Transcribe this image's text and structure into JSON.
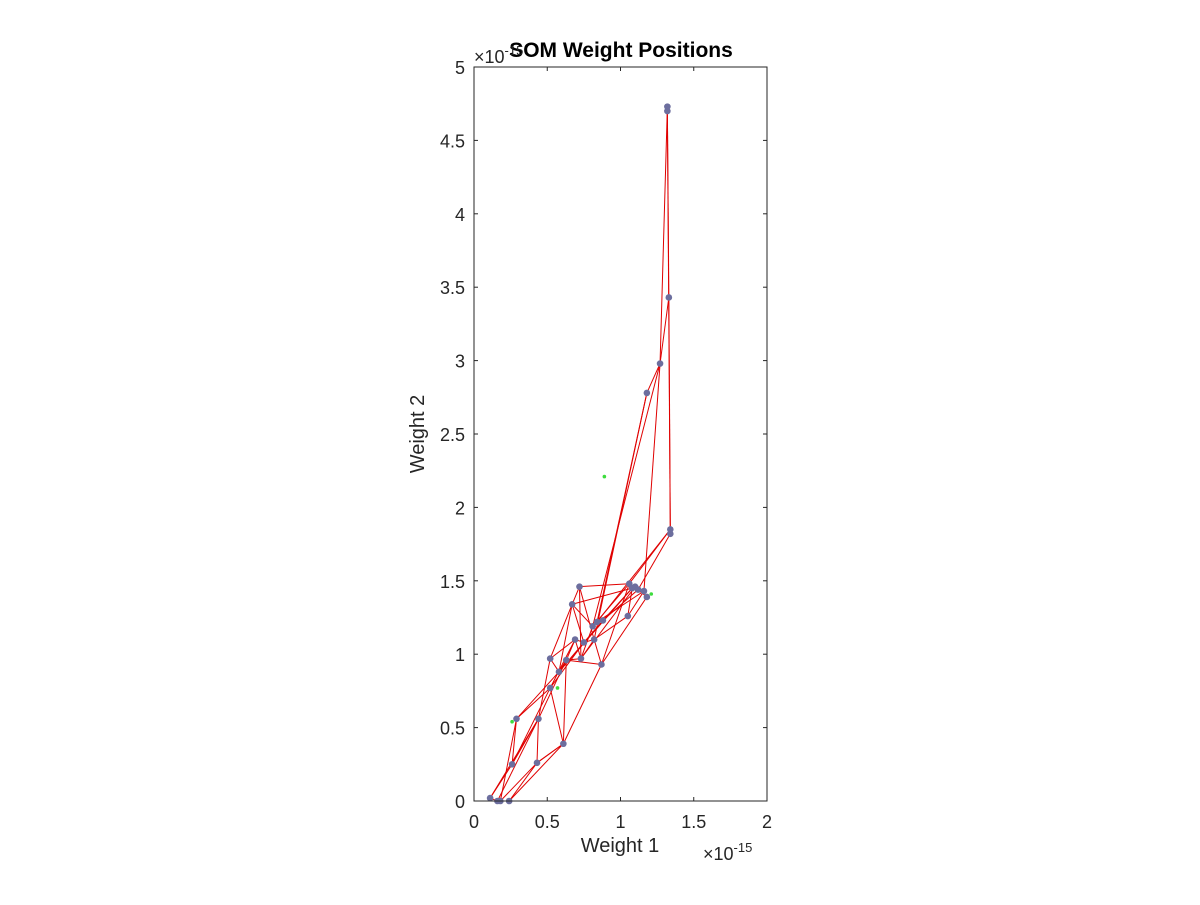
{
  "chart_data": {
    "type": "scatter",
    "title": "SOM Weight Positions",
    "xlabel": "Weight 1",
    "ylabel": "Weight 2",
    "x_exponent_label": "×10",
    "x_exponent": "-15",
    "y_exponent_label": "×10",
    "y_exponent": "-15",
    "xlim": [
      0,
      2
    ],
    "ylim": [
      0,
      5
    ],
    "xticks": [
      "0",
      "0.5",
      "1",
      "1.5",
      "2"
    ],
    "xtick_values": [
      0,
      0.5,
      1,
      1.5,
      2
    ],
    "yticks": [
      "0",
      "0.5",
      "1",
      "1.5",
      "2",
      "2.5",
      "3",
      "3.5",
      "4",
      "4.5",
      "5"
    ],
    "ytick_values": [
      0,
      0.5,
      1,
      1.5,
      2,
      2.5,
      3,
      3.5,
      4,
      4.5,
      5
    ],
    "grid": false,
    "colors": {
      "neurons": "#6c6e9e",
      "links": "#e00000",
      "inputs": "#3ddc3d",
      "axes": "#262626"
    },
    "series": [
      {
        "role": "input-data",
        "points": [
          [
            0.26,
            0.54
          ],
          [
            0.89,
            2.21
          ],
          [
            1.21,
            1.41
          ],
          [
            0.57,
            0.77
          ]
        ]
      },
      {
        "role": "neuron-weights",
        "points": [
          [
            0.11,
            0.02
          ],
          [
            0.16,
            0.0
          ],
          [
            0.18,
            0.0
          ],
          [
            0.24,
            0.0
          ],
          [
            0.26,
            0.25
          ],
          [
            0.29,
            0.56
          ],
          [
            0.43,
            0.26
          ],
          [
            0.44,
            0.56
          ],
          [
            0.52,
            0.77
          ],
          [
            0.52,
            0.97
          ],
          [
            0.58,
            0.88
          ],
          [
            0.61,
            0.39
          ],
          [
            0.63,
            0.96
          ],
          [
            0.67,
            1.34
          ],
          [
            0.69,
            1.1
          ],
          [
            0.72,
            1.46
          ],
          [
            0.73,
            0.97
          ],
          [
            0.75,
            1.08
          ],
          [
            0.81,
            1.19
          ],
          [
            0.82,
            1.1
          ],
          [
            0.84,
            1.22
          ],
          [
            0.87,
            0.93
          ],
          [
            0.88,
            1.23
          ],
          [
            1.05,
            1.26
          ],
          [
            1.06,
            1.48
          ],
          [
            1.1,
            1.46
          ],
          [
            1.12,
            1.44
          ],
          [
            1.16,
            1.43
          ],
          [
            1.18,
            1.39
          ],
          [
            1.18,
            2.78
          ],
          [
            1.27,
            2.98
          ],
          [
            1.32,
            4.7
          ],
          [
            1.32,
            4.73
          ],
          [
            1.33,
            3.43
          ],
          [
            1.34,
            1.82
          ],
          [
            1.34,
            1.85
          ],
          [
            1.08,
            1.45
          ]
        ]
      }
    ],
    "links": [
      [
        0,
        1
      ],
      [
        1,
        2
      ],
      [
        2,
        3
      ],
      [
        0,
        4
      ],
      [
        4,
        5
      ],
      [
        5,
        8
      ],
      [
        8,
        11
      ],
      [
        11,
        6
      ],
      [
        6,
        7
      ],
      [
        7,
        9
      ],
      [
        9,
        10
      ],
      [
        10,
        12
      ],
      [
        12,
        14
      ],
      [
        14,
        17
      ],
      [
        17,
        19
      ],
      [
        19,
        21
      ],
      [
        21,
        24
      ],
      [
        24,
        26
      ],
      [
        26,
        28
      ],
      [
        28,
        25
      ],
      [
        25,
        27
      ],
      [
        27,
        23
      ],
      [
        23,
        36
      ],
      [
        36,
        22
      ],
      [
        22,
        20
      ],
      [
        20,
        18
      ],
      [
        18,
        16
      ],
      [
        16,
        15
      ],
      [
        15,
        13
      ],
      [
        13,
        9
      ],
      [
        0,
        7
      ],
      [
        6,
        11
      ],
      [
        11,
        12
      ],
      [
        12,
        21
      ],
      [
        21,
        28
      ],
      [
        4,
        8
      ],
      [
        8,
        14
      ],
      [
        14,
        16
      ],
      [
        16,
        19
      ],
      [
        19,
        23
      ],
      [
        3,
        6
      ],
      [
        2,
        5
      ],
      [
        5,
        10
      ],
      [
        10,
        13
      ],
      [
        13,
        17
      ],
      [
        17,
        22
      ],
      [
        22,
        26
      ],
      [
        1,
        7
      ],
      [
        7,
        12
      ],
      [
        12,
        16
      ],
      [
        16,
        25
      ],
      [
        25,
        28
      ],
      [
        20,
        29
      ],
      [
        29,
        30
      ],
      [
        30,
        32
      ],
      [
        32,
        31
      ],
      [
        31,
        34
      ],
      [
        34,
        35
      ],
      [
        35,
        20
      ],
      [
        18,
        30
      ],
      [
        30,
        33
      ],
      [
        33,
        35
      ],
      [
        35,
        24
      ],
      [
        34,
        26
      ],
      [
        29,
        19
      ],
      [
        30,
        27
      ],
      [
        31,
        33
      ],
      [
        9,
        14
      ],
      [
        10,
        17
      ],
      [
        15,
        19
      ],
      [
        13,
        18
      ],
      [
        11,
        21
      ],
      [
        24,
        18
      ],
      [
        27,
        20
      ],
      [
        15,
        24
      ],
      [
        4,
        7
      ],
      [
        2,
        6
      ],
      [
        3,
        11
      ],
      [
        8,
        17
      ],
      [
        36,
        13
      ],
      [
        36,
        10
      ]
    ]
  }
}
